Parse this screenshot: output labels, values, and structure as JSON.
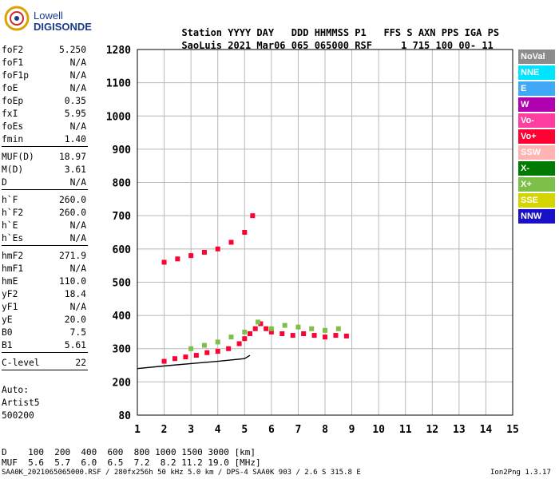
{
  "logo": {
    "line1": "Lowell",
    "line2": "DIGISONDE"
  },
  "header": {
    "labels": [
      "Station",
      "YYYY",
      "DAY",
      "DDD",
      "HHMMSS",
      "P1",
      "FFS",
      "S",
      "AXN",
      "PPS",
      "IGA",
      "PS"
    ],
    "values": [
      "SaoLuis",
      "2021",
      "Mar06",
      "065",
      "065000",
      "RSF",
      "",
      "1",
      "715",
      "100",
      "00-",
      "11"
    ]
  },
  "params": {
    "group1": [
      {
        "k": "foF2",
        "v": "5.250"
      },
      {
        "k": "foF1",
        "v": "N/A"
      },
      {
        "k": "foF1p",
        "v": "N/A"
      },
      {
        "k": "foE",
        "v": "N/A"
      },
      {
        "k": "foEp",
        "v": "0.35"
      },
      {
        "k": "fxI",
        "v": "5.95"
      },
      {
        "k": "foEs",
        "v": "N/A"
      },
      {
        "k": "fmin",
        "v": "1.40"
      }
    ],
    "group2": [
      {
        "k": "MUF(D)",
        "v": "18.97"
      },
      {
        "k": "M(D)",
        "v": "3.61"
      },
      {
        "k": "D",
        "v": "N/A"
      }
    ],
    "group3": [
      {
        "k": "h`F",
        "v": "260.0"
      },
      {
        "k": "h`F2",
        "v": "260.0"
      },
      {
        "k": "h`E",
        "v": "N/A"
      },
      {
        "k": "h`Es",
        "v": "N/A"
      }
    ],
    "group4": [
      {
        "k": "hmF2",
        "v": "271.9"
      },
      {
        "k": "hmF1",
        "v": "N/A"
      },
      {
        "k": "hmE",
        "v": "110.0"
      },
      {
        "k": "yF2",
        "v": "18.4"
      },
      {
        "k": "yF1",
        "v": "N/A"
      },
      {
        "k": "yE",
        "v": "20.0"
      },
      {
        "k": "B0",
        "v": "7.5"
      },
      {
        "k": "B1",
        "v": "5.61"
      }
    ],
    "group5": [
      {
        "k": "C-level",
        "v": "22"
      }
    ],
    "auto": [
      "Auto:",
      "Artist5",
      "500200"
    ]
  },
  "legend": [
    {
      "label": "NoVal",
      "color": "#8c8c8c"
    },
    {
      "label": "NNE",
      "color": "#00e5ff"
    },
    {
      "label": "E",
      "color": "#3fa9f5"
    },
    {
      "label": "W",
      "color": "#b000b0"
    },
    {
      "label": "Vo-",
      "color": "#ff3fa0"
    },
    {
      "label": "Vo+",
      "color": "#ff0033"
    },
    {
      "label": "SSW",
      "color": "#ffb3b3"
    },
    {
      "label": "X-",
      "color": "#007a00"
    },
    {
      "label": "X+",
      "color": "#7cc04a"
    },
    {
      "label": "SSE",
      "color": "#d4d400"
    },
    {
      "label": "NNW",
      "color": "#1a10c8"
    }
  ],
  "chart_data": {
    "type": "scatter",
    "title": "",
    "xlabel": "",
    "ylabel": "",
    "xlim": [
      1,
      15
    ],
    "x_ticks": [
      1,
      2,
      3,
      4,
      5,
      6,
      7,
      8,
      9,
      10,
      11,
      12,
      13,
      14,
      15
    ],
    "y_ticks": [
      80,
      200,
      300,
      400,
      500,
      600,
      700,
      800,
      900,
      1000,
      1100,
      1280
    ],
    "grid": true,
    "series": [
      {
        "name": "Vo+",
        "kind": "echoes",
        "points": [
          [
            2.0,
            262
          ],
          [
            2.4,
            270
          ],
          [
            2.8,
            275
          ],
          [
            3.2,
            280
          ],
          [
            3.6,
            288
          ],
          [
            4.0,
            292
          ],
          [
            4.4,
            300
          ],
          [
            4.8,
            315
          ],
          [
            5.0,
            330
          ],
          [
            5.2,
            345
          ],
          [
            5.4,
            360
          ],
          [
            5.6,
            375
          ],
          [
            5.8,
            360
          ],
          [
            6.0,
            350
          ],
          [
            6.4,
            345
          ],
          [
            6.8,
            340
          ],
          [
            7.2,
            345
          ],
          [
            7.6,
            340
          ],
          [
            8.0,
            335
          ],
          [
            8.4,
            340
          ],
          [
            8.8,
            338
          ]
        ]
      },
      {
        "name": "X+",
        "kind": "echoes",
        "points": [
          [
            3.0,
            300
          ],
          [
            3.5,
            310
          ],
          [
            4.0,
            320
          ],
          [
            4.5,
            335
          ],
          [
            5.0,
            350
          ],
          [
            5.5,
            380
          ],
          [
            6.0,
            360
          ],
          [
            6.5,
            370
          ],
          [
            7.0,
            365
          ],
          [
            7.5,
            360
          ],
          [
            8.0,
            355
          ],
          [
            8.5,
            360
          ]
        ]
      },
      {
        "name": "Vo+",
        "kind": "second-hop echoes",
        "points": [
          [
            2.0,
            560
          ],
          [
            2.5,
            570
          ],
          [
            3.0,
            580
          ],
          [
            3.5,
            590
          ],
          [
            4.0,
            600
          ],
          [
            4.5,
            620
          ],
          [
            5.0,
            650
          ],
          [
            5.3,
            700
          ]
        ]
      },
      {
        "name": "",
        "kind": "trace",
        "points": [
          [
            1.0,
            240
          ],
          [
            2.0,
            248
          ],
          [
            3.0,
            255
          ],
          [
            4.0,
            262
          ],
          [
            5.0,
            270
          ],
          [
            5.2,
            280
          ]
        ]
      }
    ],
    "annotations": []
  },
  "footer": {
    "d_label": "D",
    "d_values": [
      "100",
      "200",
      "400",
      "600",
      "800",
      "1000",
      "1500",
      "3000"
    ],
    "d_unit": "[km]",
    "muf_label": "MUF",
    "muf_values": [
      "5.6",
      "5.7",
      "6.0",
      "6.5",
      "7.2",
      "8.2",
      "11.2",
      "19.0"
    ],
    "muf_unit": "[MHz]",
    "file": "SAA0K_2021065065000.RSF / 280fx256h 50 kHz 5.0 km / DPS-4 SAA0K 903 / 2.6 S 315.8 E",
    "version": "Ion2Png 1.3.17"
  }
}
